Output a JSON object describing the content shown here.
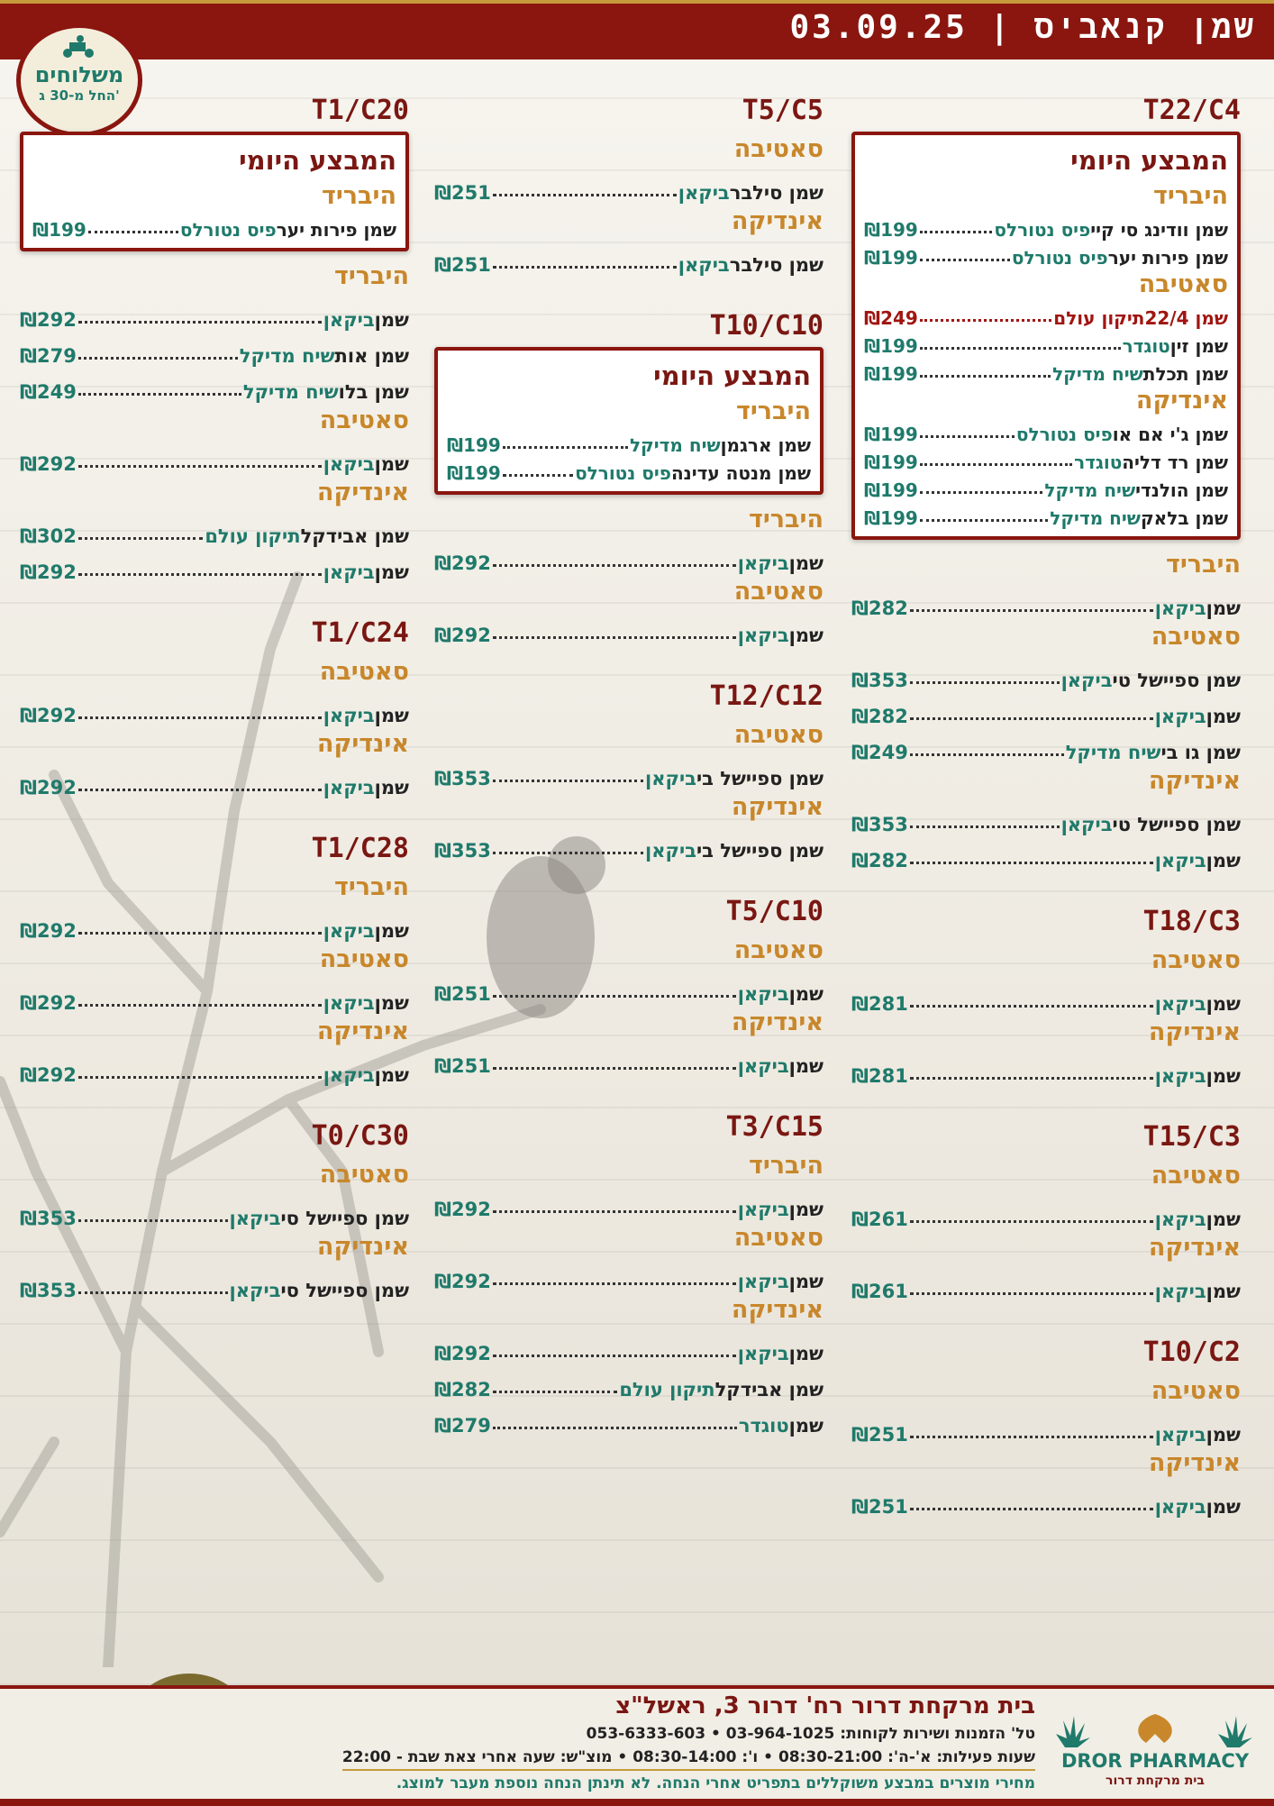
{
  "header": {
    "title": "שמן קנאביס | 03.09.25"
  },
  "badge": {
    "line1": "משלוחים",
    "line2": "החל מ-30 ג'"
  },
  "columns": [
    [
      {
        "code": "T22/C4",
        "daily": {
          "title": "המבצע היומי",
          "groups": [
            {
              "cat": "היבריד",
              "items": [
                {
                  "name": "שמן וודינג סי קיי",
                  "brand": "פיס נטורלס",
                  "price": "₪199"
                },
                {
                  "name": "שמן פירות יער",
                  "brand": "פיס נטורלס",
                  "price": "₪199"
                }
              ]
            },
            {
              "cat": "סאטיבה",
              "items": [
                {
                  "name": "שמן 22/4",
                  "brand": "תיקון עולם",
                  "price": "₪249",
                  "red": true
                },
                {
                  "name": "שמן זין",
                  "brand": "טוגדר",
                  "price": "₪199"
                },
                {
                  "name": "שמן תכלת",
                  "brand": "שיח מדיקל",
                  "price": "₪199"
                }
              ]
            },
            {
              "cat": "אינדיקה",
              "items": [
                {
                  "name": "שמן ג'י אם או",
                  "brand": "פיס נטורלס",
                  "price": "₪199"
                },
                {
                  "name": "שמן רד דליה",
                  "brand": "טוגדר",
                  "price": "₪199"
                },
                {
                  "name": "שמן הולנדי",
                  "brand": "שיח מדיקל",
                  "price": "₪199"
                },
                {
                  "name": "שמן בלאק",
                  "brand": "שיח מדיקל",
                  "price": "₪199"
                }
              ]
            }
          ]
        },
        "groups": [
          {
            "cat": "היבריד",
            "items": [
              {
                "name": "שמן",
                "brand": "ביקאן",
                "price": "₪282"
              }
            ]
          },
          {
            "cat": "סאטיבה",
            "items": [
              {
                "name": "שמן ספיישל טי",
                "brand": "ביקאן",
                "price": "₪353"
              },
              {
                "name": "שמן",
                "brand": "ביקאן",
                "price": "₪282"
              },
              {
                "name": "שמן גו בי",
                "brand": "שיח מדיקל",
                "price": "₪249"
              }
            ]
          },
          {
            "cat": "אינדיקה",
            "items": [
              {
                "name": "שמן ספיישל טי",
                "brand": "ביקאן",
                "price": "₪353"
              },
              {
                "name": "שמן",
                "brand": "ביקאן",
                "price": "₪282"
              }
            ]
          }
        ]
      },
      {
        "code": "T18/C3",
        "groups": [
          {
            "cat": "סאטיבה",
            "items": [
              {
                "name": "שמן",
                "brand": "ביקאן",
                "price": "₪281"
              }
            ]
          },
          {
            "cat": "אינדיקה",
            "items": [
              {
                "name": "שמן",
                "brand": "ביקאן",
                "price": "₪281"
              }
            ]
          }
        ]
      },
      {
        "code": "T15/C3",
        "groups": [
          {
            "cat": "סאטיבה",
            "items": [
              {
                "name": "שמן",
                "brand": "ביקאן",
                "price": "₪261"
              }
            ]
          },
          {
            "cat": "אינדיקה",
            "items": [
              {
                "name": "שמן",
                "brand": "ביקאן",
                "price": "₪261"
              }
            ]
          }
        ]
      },
      {
        "code": "T10/C2",
        "groups": [
          {
            "cat": "סאטיבה",
            "items": [
              {
                "name": "שמן",
                "brand": "ביקאן",
                "price": "₪251"
              }
            ]
          },
          {
            "cat": "אינדיקה",
            "items": [
              {
                "name": "שמן",
                "brand": "ביקאן",
                "price": "₪251"
              }
            ]
          }
        ]
      }
    ],
    [
      {
        "code": "T5/C5",
        "groups": [
          {
            "cat": "סאטיבה",
            "items": [
              {
                "name": "שמן סילבר",
                "brand": "ביקאן",
                "price": "₪251"
              }
            ]
          },
          {
            "cat": "אינדיקה",
            "items": [
              {
                "name": "שמן סילבר",
                "brand": "ביקאן",
                "price": "₪251"
              }
            ]
          }
        ]
      },
      {
        "code": "T10/C10",
        "daily": {
          "title": "המבצע היומי",
          "groups": [
            {
              "cat": "היבריד",
              "items": [
                {
                  "name": "שמן ארגמן",
                  "brand": "שיח מדיקל",
                  "price": "₪199"
                },
                {
                  "name": "שמן מנטה עדינה",
                  "brand": "פיס נטורלס",
                  "price": "₪199"
                }
              ]
            }
          ]
        },
        "groups": [
          {
            "cat": "היבריד",
            "items": [
              {
                "name": "שמן",
                "brand": "ביקאן",
                "price": "₪292"
              }
            ]
          },
          {
            "cat": "סאטיבה",
            "items": [
              {
                "name": "שמן",
                "brand": "ביקאן",
                "price": "₪292"
              }
            ]
          }
        ]
      },
      {
        "code": "T12/C12",
        "groups": [
          {
            "cat": "סאטיבה",
            "items": [
              {
                "name": "שמן ספיישל בי",
                "brand": "ביקאן",
                "price": "₪353"
              }
            ]
          },
          {
            "cat": "אינדיקה",
            "items": [
              {
                "name": "שמן ספיישל בי",
                "brand": "ביקאן",
                "price": "₪353"
              }
            ]
          }
        ]
      },
      {
        "code": "T5/C10",
        "groups": [
          {
            "cat": "סאטיבה",
            "items": [
              {
                "name": "שמן",
                "brand": "ביקאן",
                "price": "₪251"
              }
            ]
          },
          {
            "cat": "אינדיקה",
            "items": [
              {
                "name": "שמן",
                "brand": "ביקאן",
                "price": "₪251"
              }
            ]
          }
        ]
      },
      {
        "code": "T3/C15",
        "groups": [
          {
            "cat": "היבריד",
            "items": [
              {
                "name": "שמן",
                "brand": "ביקאן",
                "price": "₪292"
              }
            ]
          },
          {
            "cat": "סאטיבה",
            "items": [
              {
                "name": "שמן",
                "brand": "ביקאן",
                "price": "₪292"
              }
            ]
          },
          {
            "cat": "אינדיקה",
            "items": [
              {
                "name": "שמן",
                "brand": "ביקאן",
                "price": "₪292"
              },
              {
                "name": "שמן אבידקל",
                "brand": "תיקון עולם",
                "price": "₪282"
              },
              {
                "name": "שמן",
                "brand": "טוגדר",
                "price": "₪279"
              }
            ]
          }
        ]
      }
    ],
    [
      {
        "code": "T1/C20",
        "daily": {
          "title": "המבצע היומי",
          "groups": [
            {
              "cat": "היבריד",
              "items": [
                {
                  "name": "שמן פירות יער",
                  "brand": "פיס נטורלס",
                  "price": "₪199"
                }
              ]
            }
          ]
        },
        "groups": [
          {
            "cat": "היבריד",
            "items": [
              {
                "name": "שמן",
                "brand": "ביקאן",
                "price": "₪292"
              },
              {
                "name": "שמן אות",
                "brand": "שיח מדיקל",
                "price": "₪279"
              },
              {
                "name": "שמן בלו",
                "brand": "שיח מדיקל",
                "price": "₪249"
              }
            ]
          },
          {
            "cat": "סאטיבה",
            "items": [
              {
                "name": "שמן",
                "brand": "ביקאן",
                "price": "₪292"
              }
            ]
          },
          {
            "cat": "אינדיקה",
            "items": [
              {
                "name": "שמן אבידקל",
                "brand": "תיקון עולם",
                "price": "₪302"
              },
              {
                "name": "שמן",
                "brand": "ביקאן",
                "price": "₪292"
              }
            ]
          }
        ]
      },
      {
        "code": "T1/C24",
        "groups": [
          {
            "cat": "סאטיבה",
            "items": [
              {
                "name": "שמן",
                "brand": "ביקאן",
                "price": "₪292"
              }
            ]
          },
          {
            "cat": "אינדיקה",
            "items": [
              {
                "name": "שמן",
                "brand": "ביקאן",
                "price": "₪292"
              }
            ]
          }
        ]
      },
      {
        "code": "T1/C28",
        "groups": [
          {
            "cat": "היבריד",
            "items": [
              {
                "name": "שמן",
                "brand": "ביקאן",
                "price": "₪292"
              }
            ]
          },
          {
            "cat": "סאטיבה",
            "items": [
              {
                "name": "שמן",
                "brand": "ביקאן",
                "price": "₪292"
              }
            ]
          },
          {
            "cat": "אינדיקה",
            "items": [
              {
                "name": "שמן",
                "brand": "ביקאן",
                "price": "₪292"
              }
            ]
          }
        ]
      },
      {
        "code": "T0/C30",
        "groups": [
          {
            "cat": "סאטיבה",
            "items": [
              {
                "name": "שמן ספיישל סי",
                "brand": "ביקאן",
                "price": "₪353"
              }
            ]
          },
          {
            "cat": "אינדיקה",
            "items": [
              {
                "name": "שמן ספיישל סי",
                "brand": "ביקאן",
                "price": "₪353"
              }
            ]
          }
        ]
      }
    ]
  ],
  "footer": {
    "line1": "בית מרקחת דרור רח' דרור 3, ראשל\"צ",
    "line2": "טל' הזמנות ושירות לקוחות: 03-964-1025 • 053-6333-603",
    "line3": "שעות פעילות: א'-ה': 08:30-21:00 • ו': 08:30-14:00 • מוצ\"ש: שעה אחרי צאת שבת - 22:00",
    "line4": "מחירי מוצרים במבצע משוקללים בתפריט אחרי הנחה. לא תינתן הנחה נוספת מעבר למוצג.",
    "logo_name": "DROR PHARMACY",
    "logo_sub": "בית מרקחת דרור"
  },
  "colors": {
    "brand_red": "#8a160f",
    "teal": "#1f7a6b",
    "gold": "#c8872b"
  }
}
